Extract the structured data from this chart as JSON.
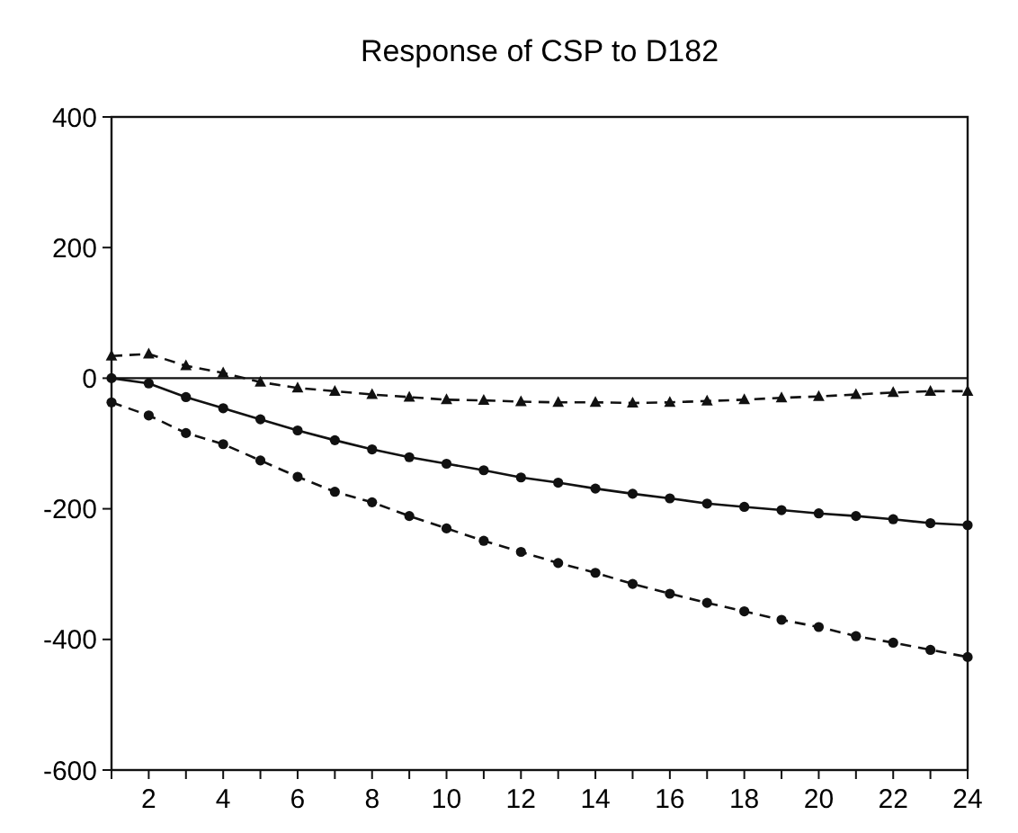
{
  "chart_data": {
    "type": "line",
    "title": "Response of CSP to D182",
    "x": [
      1,
      2,
      3,
      4,
      5,
      6,
      7,
      8,
      9,
      10,
      11,
      12,
      13,
      14,
      15,
      16,
      17,
      18,
      19,
      20,
      21,
      22,
      23,
      24
    ],
    "series": [
      {
        "color": "#111111",
        "marker": "triangle",
        "line_style": "dashed",
        "values": [
          34,
          37,
          19,
          8,
          -6,
          -15,
          -20,
          -25,
          -29,
          -33,
          -34,
          -36,
          -37,
          -37,
          -38,
          -37,
          -35,
          -33,
          -30,
          -28,
          -25,
          -22,
          -20,
          -20
        ]
      },
      {
        "color": "#111111",
        "marker": "circle",
        "line_style": "solid",
        "values": [
          0,
          -8,
          -29,
          -46,
          -63,
          -80,
          -95,
          -109,
          -121,
          -131,
          -141,
          -152,
          -160,
          -169,
          -177,
          -184,
          -192,
          -197,
          -202,
          -207,
          -211,
          -216,
          -222,
          -225
        ]
      },
      {
        "color": "#111111",
        "marker": "circle",
        "line_style": "dashed",
        "values": [
          -37,
          -57,
          -84,
          -101,
          -126,
          -151,
          -174,
          -190,
          -211,
          -230,
          -249,
          -266,
          -283,
          -298,
          -315,
          -330,
          -344,
          -357,
          -370,
          -381,
          -395,
          -405,
          -416,
          -427
        ]
      }
    ],
    "xlim": [
      1,
      24
    ],
    "xticks": [
      {
        "value": 1,
        "label": null
      },
      2,
      {
        "value": 3,
        "label": null
      },
      4,
      {
        "value": 5,
        "label": null
      },
      6,
      {
        "value": 7,
        "label": null
      },
      8,
      {
        "value": 9,
        "label": null
      },
      10,
      {
        "value": 11,
        "label": null
      },
      12,
      {
        "value": 13,
        "label": null
      },
      14,
      {
        "value": 15,
        "label": null
      },
      16,
      {
        "value": 17,
        "label": null
      },
      18,
      {
        "value": 19,
        "label": null
      },
      20,
      {
        "value": 21,
        "label": null
      },
      22,
      {
        "value": 23,
        "label": null
      },
      24
    ],
    "ylim": [
      -600,
      400
    ],
    "yticks": [
      -600,
      -400,
      -200,
      0,
      200,
      400
    ],
    "ref_lines": [
      {
        "axis": "y",
        "value": 0,
        "color": "#111111",
        "line_style": "solid"
      }
    ],
    "grid": false
  }
}
